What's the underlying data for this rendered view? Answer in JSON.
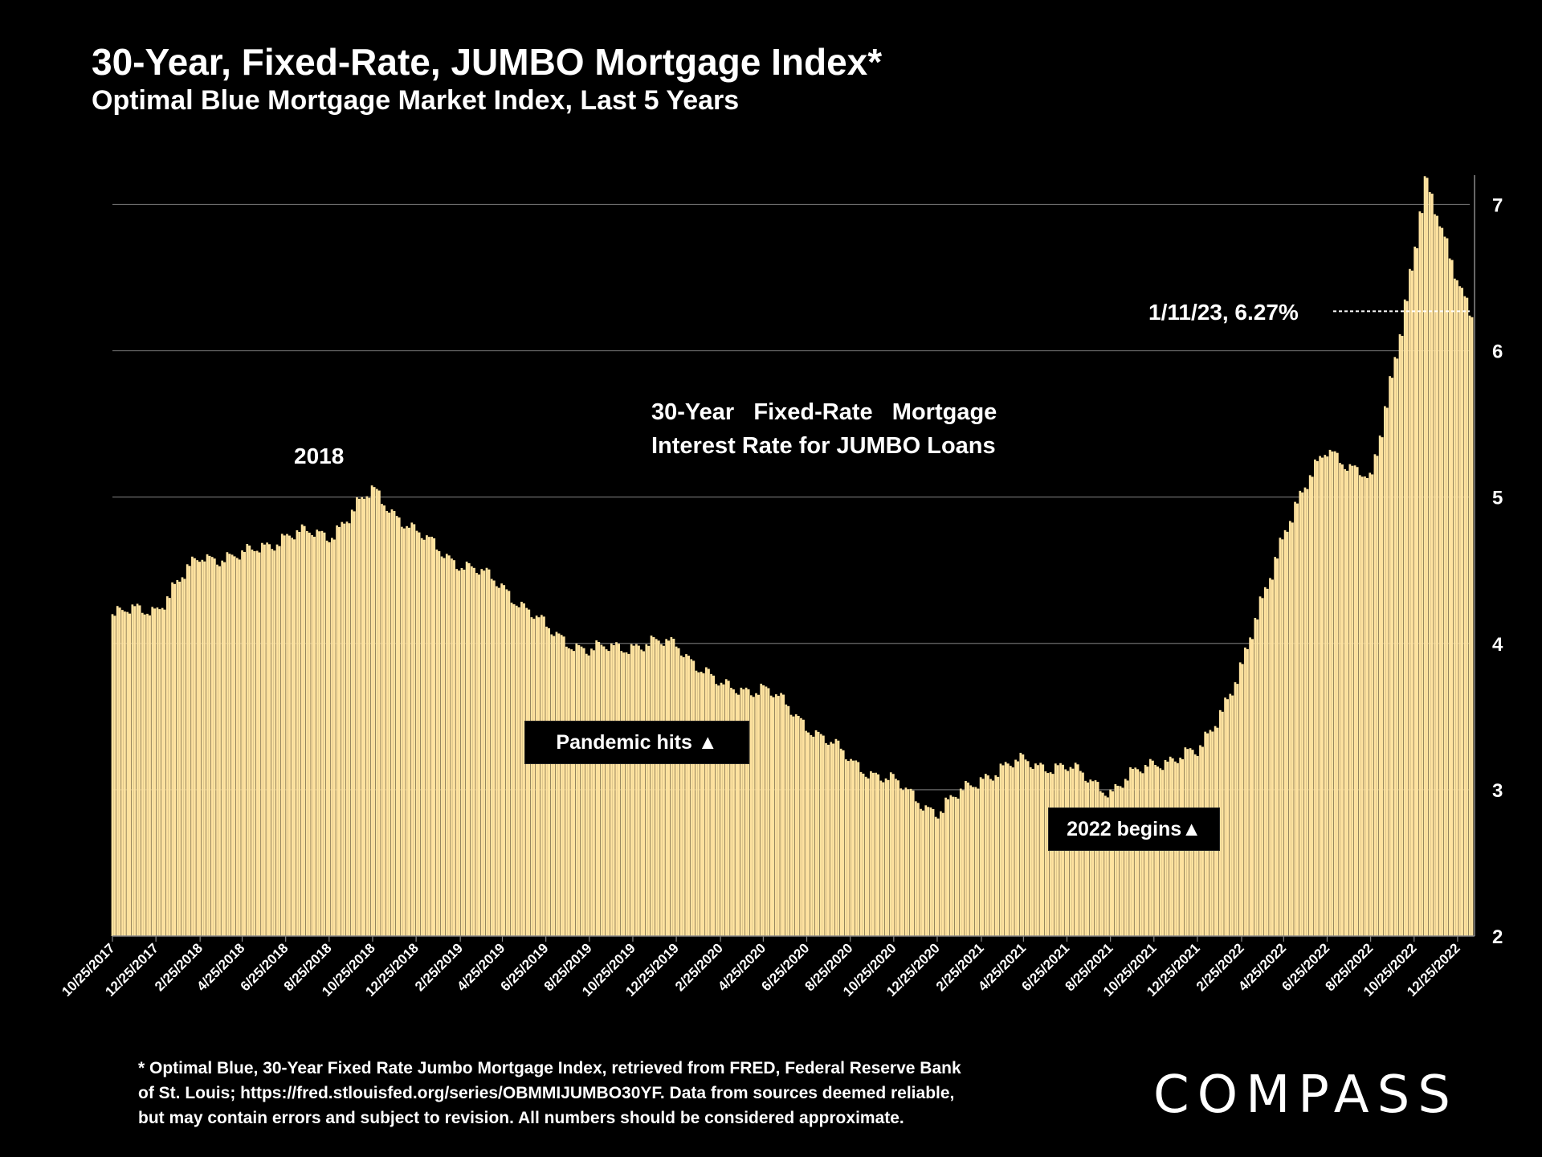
{
  "header": {
    "title": "30-Year, Fixed-Rate, JUMBO Mortgage Index*",
    "subtitle": "Optimal Blue Mortgage Market Index, Last 5 Years"
  },
  "annotations": {
    "year_label": "2018",
    "series_label_line1": "30-Year   Fixed-Rate   Mortgage",
    "series_label_line2": "Interest Rate for JUMBO Loans",
    "last_value_label": "1/11/23, 6.27%",
    "pandemic_label": "Pandemic hits ▲",
    "year2022_label": "2022 begins▲"
  },
  "footnote": {
    "line1": "* Optimal Blue, 30-Year Fixed Rate Jumbo Mortgage Index, retrieved from FRED, Federal Reserve Bank",
    "line2": "of St. Louis; https://fred.stlouisfed.org/series/OBMMIJUMBO30YF. Data from sources deemed reliable,",
    "line3": "but may contain errors and subject to revision. All numbers should be considered approximate."
  },
  "brand": {
    "logo_text": "COMPASS"
  },
  "colors": {
    "background": "#000000",
    "bar_fill": "#FFE3A0",
    "gridline": "#6b6b6b",
    "text": "#FFFFFF"
  },
  "chart_data": {
    "type": "bar",
    "title": "30-Year Fixed-Rate Mortgage Interest Rate for JUMBO Loans",
    "xlabel": "",
    "ylabel": "",
    "ylim": [
      2,
      7.2
    ],
    "yticks": [
      "2",
      "3",
      "4",
      "5",
      "6",
      "7"
    ],
    "grid": true,
    "xtick_labels": [
      "10/25/2017",
      "12/25/2017",
      "2/25/2018",
      "4/25/2018",
      "6/25/2018",
      "8/25/2018",
      "10/25/2018",
      "12/25/2018",
      "2/25/2019",
      "4/25/2019",
      "6/25/2019",
      "8/25/2019",
      "10/25/2019",
      "12/25/2019",
      "2/25/2020",
      "4/25/2020",
      "6/25/2020",
      "8/25/2020",
      "10/25/2020",
      "12/25/2020",
      "2/25/2021",
      "4/25/2021",
      "6/25/2021",
      "8/25/2021",
      "10/25/2021",
      "12/25/2021",
      "2/25/2022",
      "4/25/2022",
      "6/25/2022",
      "8/25/2022",
      "10/25/2022",
      "12/25/2022"
    ],
    "series": [
      {
        "name": "30-Year Fixed-Rate JUMBO Mortgage Index (%)",
        "anchors": [
          {
            "date": "10/25/2017",
            "value": 4.2
          },
          {
            "date": "12/25/2017",
            "value": 4.25
          },
          {
            "date": "2/25/2018",
            "value": 4.6
          },
          {
            "date": "4/25/2018",
            "value": 4.6
          },
          {
            "date": "6/25/2018",
            "value": 4.75
          },
          {
            "date": "8/25/2018",
            "value": 4.75
          },
          {
            "date": "10/25/2018",
            "value": 5.05
          },
          {
            "date": "12/25/2018",
            "value": 4.75
          },
          {
            "date": "2/25/2019",
            "value": 4.55
          },
          {
            "date": "4/25/2019",
            "value": 4.4
          },
          {
            "date": "6/25/2019",
            "value": 4.1
          },
          {
            "date": "8/25/2019",
            "value": 3.95
          },
          {
            "date": "10/25/2019",
            "value": 4.0
          },
          {
            "date": "12/25/2019",
            "value": 4.0
          },
          {
            "date": "2/25/2020",
            "value": 3.7
          },
          {
            "date": "4/25/2020",
            "value": 3.7
          },
          {
            "date": "6/25/2020",
            "value": 3.45
          },
          {
            "date": "8/25/2020",
            "value": 3.2
          },
          {
            "date": "10/25/2020",
            "value": 3.05
          },
          {
            "date": "12/25/2020",
            "value": 2.85
          },
          {
            "date": "2/25/2021",
            "value": 3.1
          },
          {
            "date": "4/25/2021",
            "value": 3.2
          },
          {
            "date": "6/25/2021",
            "value": 3.15
          },
          {
            "date": "8/25/2021",
            "value": 3.0
          },
          {
            "date": "10/25/2021",
            "value": 3.2
          },
          {
            "date": "12/25/2021",
            "value": 3.25
          },
          {
            "date": "2/25/2022",
            "value": 3.85
          },
          {
            "date": "4/25/2022",
            "value": 4.8
          },
          {
            "date": "6/25/2022",
            "value": 5.35
          },
          {
            "date": "8/25/2022",
            "value": 5.1
          },
          {
            "date": "10/25/2022",
            "value": 6.7
          },
          {
            "date": "11/8/2022",
            "value": 7.15
          },
          {
            "date": "12/25/2022",
            "value": 6.5
          },
          {
            "date": "1/11/2023",
            "value": 6.27
          }
        ]
      }
    ],
    "last_point": {
      "date": "1/11/23",
      "value": 6.27
    }
  }
}
